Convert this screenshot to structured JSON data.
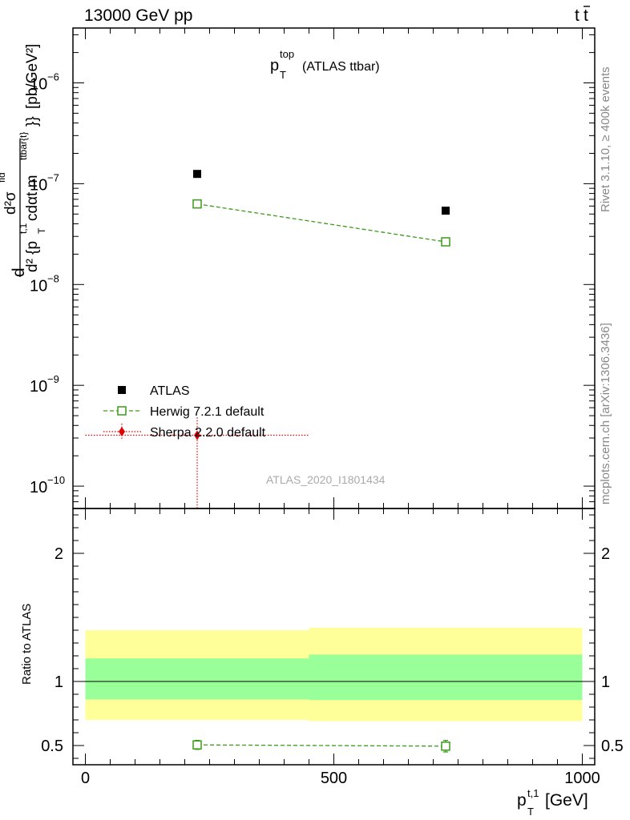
{
  "header": {
    "energy_label": "13000 GeV pp",
    "process_label_t": "t",
    "process_label_tbar": "t",
    "side_label_rivet": "Rivet 3.1.10, ≥ 400k events",
    "side_label_mcplots": "mcplots.cern.ch [arXiv:1306.3436]",
    "watermark": "ATLAS_2020_I1801434"
  },
  "colors": {
    "atlas": "#000000",
    "herwig": "#3a9a1a",
    "sherpa": "#e00000",
    "band_inner": "#99ff99",
    "band_outer": "#ffff99"
  },
  "chart_data": [
    {
      "type": "scatter",
      "panel": "main",
      "title": {
        "base": "p",
        "sup": "top",
        "sub": "T",
        "suffix": "(ATLAS ttbar)"
      },
      "ylabel": "d²σ / d²{p_T^{t,1} cdαt m^{ttbar(t)}} [pb/GeV²]",
      "ylabel_parts": {
        "num_d": "d",
        "num_sigma": "d²σ",
        "num_sup": "fid",
        "den_a": "d² {p",
        "den_sup1": "t,1",
        "den_sub1": "T",
        "den_b": " cdαt m",
        "den_sup2": "ttbar{t}",
        "den_c": "}}",
        "unit": "[pb/GeV²]"
      },
      "yscale": "log",
      "ylim": [
        6e-11,
        3.5e-06
      ],
      "xlim": [
        -25,
        1025
      ],
      "y_tick_labels": [
        {
          "base": "10",
          "exp": "−10",
          "value": 1e-10
        },
        {
          "base": "10",
          "exp": "−9",
          "value": 1e-09
        },
        {
          "base": "10",
          "exp": "−8",
          "value": 1e-08
        },
        {
          "base": "10",
          "exp": "−7",
          "value": 1e-07
        },
        {
          "base": "10",
          "exp": "−6",
          "value": 1e-06
        }
      ],
      "legend_position": "bottom-left",
      "series": [
        {
          "name": "ATLAS",
          "marker": "filled-square",
          "x": [
            225,
            725
          ],
          "y": [
            1.25e-07,
            5.4e-08
          ]
        },
        {
          "name": "Herwig 7.2.1 default",
          "marker": "open-square",
          "line": "dashed",
          "x": [
            225,
            725
          ],
          "y": [
            6.3e-08,
            2.65e-08
          ]
        },
        {
          "name": "Sherpa 2.2.0 default",
          "marker": "diamond",
          "line": "dotted",
          "x": [
            225
          ],
          "y": [
            3.2e-10
          ],
          "x_range": [
            0,
            450
          ]
        }
      ]
    },
    {
      "type": "scatter",
      "panel": "ratio",
      "ylabel": "Ratio to ATLAS",
      "ylim": [
        0.35,
        2.35
      ],
      "y_ticks": [
        0.5,
        1,
        2
      ],
      "y_tick_labels": [
        "0.5",
        "1",
        "2"
      ],
      "xlim": [
        -25,
        1025
      ],
      "x_ticks": [
        0,
        500,
        1000
      ],
      "x_tick_labels": [
        "0",
        "500",
        "1000"
      ],
      "xlabel": {
        "base": "p",
        "sup": "t,1",
        "sub": "T",
        "unit": "[GeV]"
      },
      "reference_line": 1,
      "bands": [
        {
          "x_range": [
            0,
            450
          ],
          "outer": [
            0.7,
            1.4
          ],
          "inner": [
            0.86,
            1.18
          ]
        },
        {
          "x_range": [
            450,
            1000
          ],
          "outer": [
            0.69,
            1.42
          ],
          "inner": [
            0.855,
            1.21
          ]
        }
      ],
      "series": [
        {
          "name": "Herwig 7.2.1 default",
          "marker": "open-square",
          "line": "dashed",
          "x": [
            225,
            725
          ],
          "y": [
            0.505,
            0.495
          ],
          "y_err": [
            0.035,
            0.045
          ]
        }
      ]
    }
  ]
}
